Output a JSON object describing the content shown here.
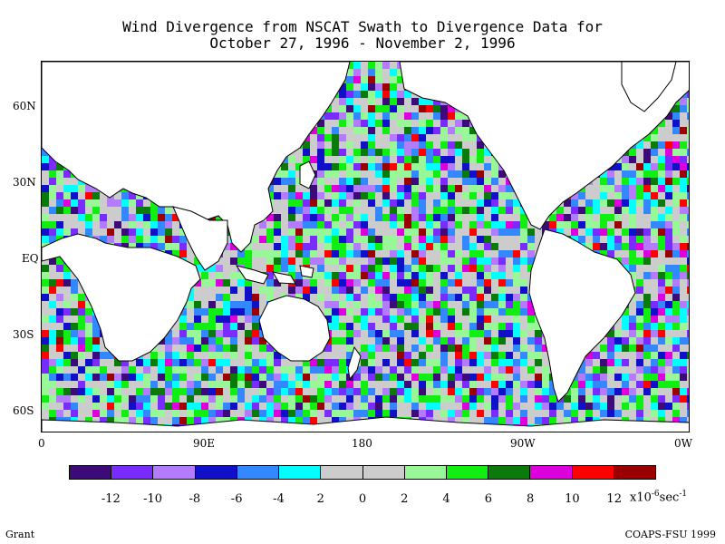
{
  "title": {
    "line1": "Wind Divergence from NSCAT Swath to Divergence Data for",
    "line2": "October 27, 1996 - November 2, 1996"
  },
  "axes": {
    "lat_labels": [
      "60N",
      "30N",
      "EQ",
      "30S",
      "60S"
    ],
    "lon_labels": [
      "0",
      "90E",
      "180",
      "90W",
      "0W"
    ]
  },
  "colorbar": {
    "colors": [
      "#3d0a7a",
      "#7a2bff",
      "#b37cff",
      "#1010c8",
      "#3388ff",
      "#00ffff",
      "#cccccc",
      "#cccccc",
      "#98f898",
      "#11ee11",
      "#0a7a0a",
      "#dd00dd",
      "#ff0000",
      "#9a0000"
    ],
    "tick_labels": [
      "-12",
      "-10",
      "-8",
      "-6",
      "-4",
      "2",
      "0",
      "2",
      "4",
      "6",
      "8",
      "10",
      "12"
    ],
    "units_prefix": "x10",
    "units_exp1": "-6",
    "units_mid": "sec",
    "units_exp2": "-1"
  },
  "footer": {
    "left": "Grant",
    "right": "COAPS-FSU 1999"
  }
}
